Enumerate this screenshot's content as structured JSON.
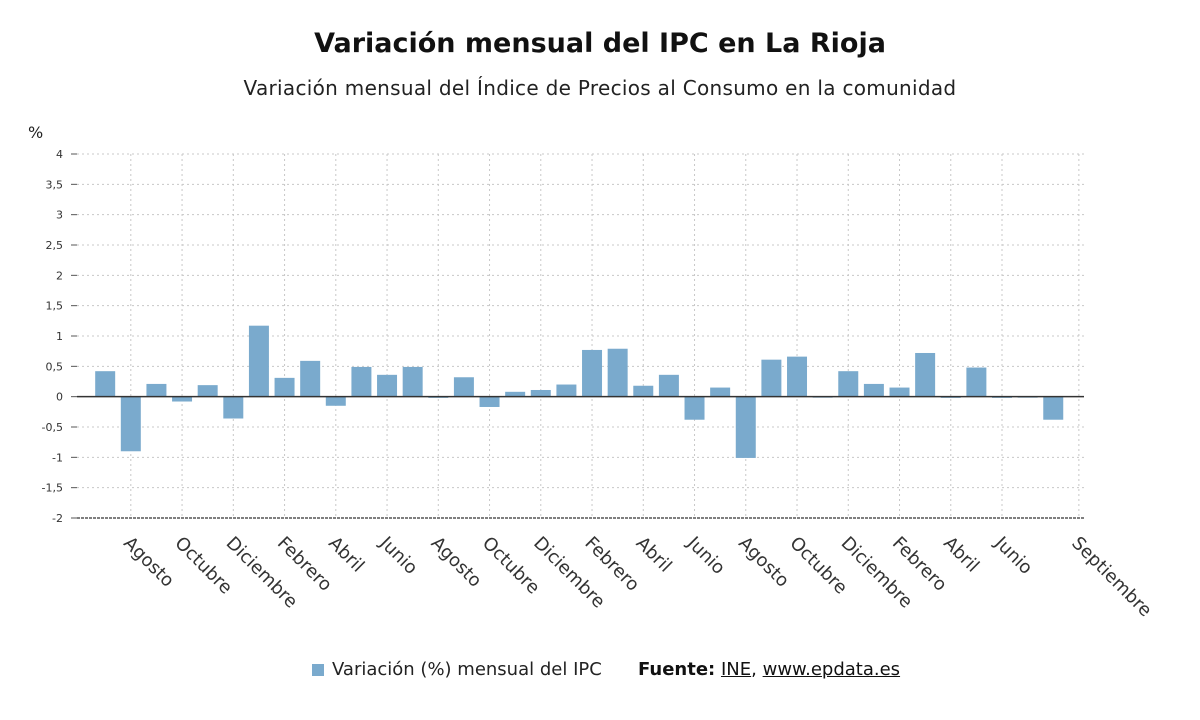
{
  "header": {
    "title": "Variación mensual del IPC en La Rioja",
    "subtitle": "Variación mensual del Índice de Precios al Consumo en la comunidad"
  },
  "legend": {
    "label": "Variación (%) mensual del IPC"
  },
  "source": {
    "label": "Fuente:",
    "link1": "INE",
    "separator": ",",
    "link2": "www.epdata.es"
  },
  "colors": {
    "bar": "#7aaacd",
    "grid": "#c8c8c8",
    "axis": "#333333"
  },
  "chart_data": {
    "type": "bar",
    "title": "Variación mensual del IPC en La Rioja",
    "subtitle": "Variación mensual del Índice de Precios al Consumo en la comunidad",
    "ylabel": "%",
    "ylim": [
      -2,
      4
    ],
    "yticks": [
      "4",
      "3,5",
      "3",
      "2,5",
      "2",
      "1,5",
      "1",
      "0,5",
      "0",
      "-0,5",
      "-1",
      "-1,5",
      "-2"
    ],
    "grid": true,
    "legend_position": "bottom",
    "xtick_labels": [
      {
        "label": "Agosto",
        "index": 1
      },
      {
        "label": "Octubre",
        "index": 3
      },
      {
        "label": "Diciembre",
        "index": 5
      },
      {
        "label": "Febrero",
        "index": 7
      },
      {
        "label": "Abril",
        "index": 9
      },
      {
        "label": "Junio",
        "index": 11
      },
      {
        "label": "Agosto",
        "index": 13
      },
      {
        "label": "Octubre",
        "index": 15
      },
      {
        "label": "Diciembre",
        "index": 17
      },
      {
        "label": "Febrero",
        "index": 19
      },
      {
        "label": "Abril",
        "index": 21
      },
      {
        "label": "Junio",
        "index": 23
      },
      {
        "label": "Agosto",
        "index": 25
      },
      {
        "label": "Octubre",
        "index": 27
      },
      {
        "label": "Diciembre",
        "index": 29
      },
      {
        "label": "Febrero",
        "index": 31
      },
      {
        "label": "Abril",
        "index": 33
      },
      {
        "label": "Junio",
        "index": 35
      },
      {
        "label": "Septiembre",
        "index": 38
      }
    ],
    "series": [
      {
        "name": "Variación (%) mensual del IPC",
        "values": [
          0.42,
          -0.9,
          0.21,
          -0.08,
          0.19,
          -0.36,
          1.17,
          0.31,
          0.59,
          -0.15,
          0.49,
          0.36,
          0.49,
          -0.02,
          0.32,
          -0.17,
          0.08,
          0.11,
          0.2,
          0.77,
          0.79,
          0.18,
          0.36,
          -0.38,
          0.15,
          -1.01,
          0.61,
          0.66,
          0.0,
          0.42,
          0.21,
          0.15,
          0.72,
          -0.02,
          0.48,
          -0.02,
          0.0,
          -0.38
        ]
      }
    ]
  }
}
